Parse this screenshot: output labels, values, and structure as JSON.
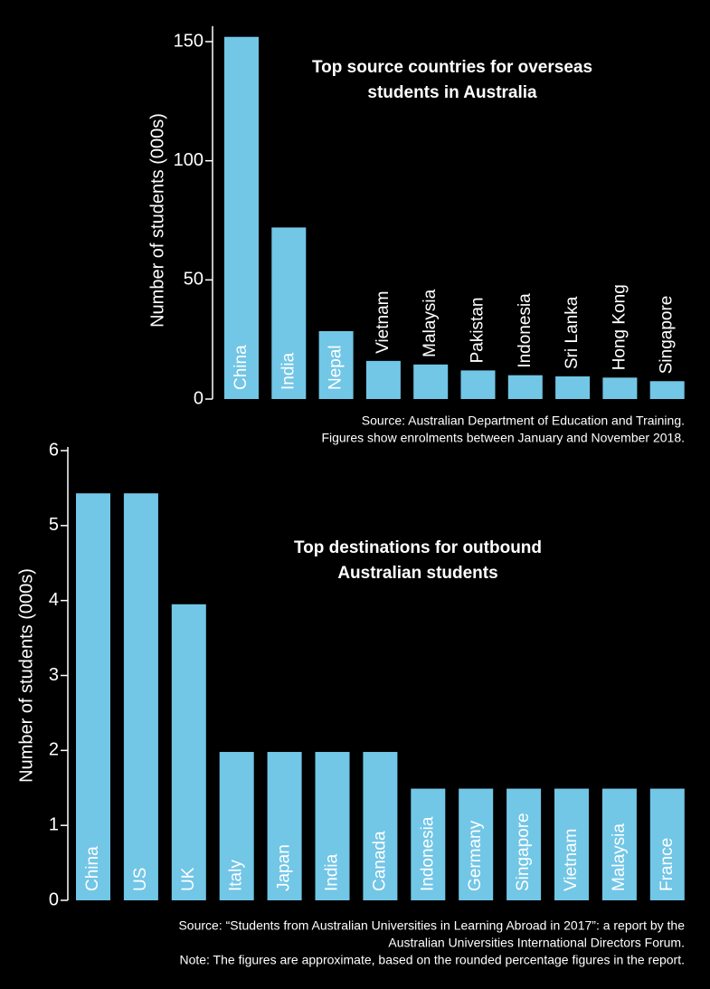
{
  "chart_data": [
    {
      "type": "bar",
      "title": [
        "Top source countries for overseas",
        "students in Australia"
      ],
      "y_label": "Number of students (000s)",
      "categories": [
        "China",
        "India",
        "Nepal",
        "Vietnam",
        "Malaysia",
        "Pakistan",
        "Indonesia",
        "Sri Lanka",
        "Hong Kong",
        "Singapore"
      ],
      "values": [
        152,
        72,
        28.5,
        16,
        14.5,
        12,
        10,
        9.5,
        9,
        7.5
      ],
      "color": "#72c6e6",
      "ylim": [
        0,
        155
      ],
      "yticks": [
        0,
        50,
        100,
        150
      ],
      "grid": false,
      "source": [
        "Source: Australian Department of Education and Training.",
        "Figures show enrolments between January and November 2018."
      ]
    },
    {
      "type": "bar",
      "title": [
        "Top destinations for outbound",
        "Australian students"
      ],
      "y_label": "Number of students (000s)",
      "categories": [
        "China",
        "US",
        "UK",
        "Italy",
        "Japan",
        "India",
        "Canada",
        "Indonesia",
        "Germany",
        "Singapore",
        "Vietnam",
        "Malaysia",
        "France"
      ],
      "values": [
        5.43,
        5.43,
        3.95,
        1.98,
        1.98,
        1.98,
        1.98,
        1.49,
        1.49,
        1.49,
        1.49,
        1.49,
        1.49
      ],
      "color": "#72c6e6",
      "ylim": [
        0,
        6
      ],
      "yticks": [
        0,
        1,
        2,
        3,
        4,
        5,
        6
      ],
      "grid": false,
      "source": [
        "Source: “Students from Australian Universities in Learning Abroad in 2017”: a report by the",
        "Australian Universities International Directors Forum.",
        "Note: The figures are approximate, based on the rounded percentage figures in the report."
      ]
    }
  ]
}
